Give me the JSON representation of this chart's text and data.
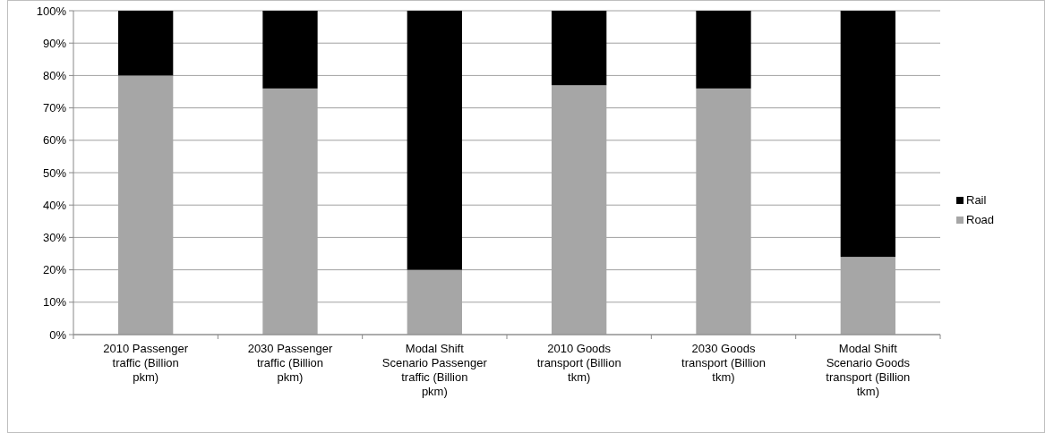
{
  "chart_data": {
    "type": "bar",
    "stacked": true,
    "categories": [
      "2010 Passenger traffic (Billion pkm)",
      "2030 Passenger traffic (Billion pkm)",
      "Modal Shift Scenario Passenger traffic (Billion pkm)",
      "2010 Goods transport (Billion tkm)",
      "2030 Goods transport (Billion tkm)",
      "Modal Shift Scenario Goods transport (Billion tkm)"
    ],
    "series": [
      {
        "name": "Road",
        "color": "#a6a6a6",
        "values": [
          80,
          76,
          20,
          77,
          76,
          24
        ]
      },
      {
        "name": "Rail",
        "color": "#000000",
        "values": [
          20,
          24,
          80,
          23,
          24,
          76
        ]
      }
    ],
    "ylim": [
      0,
      100
    ],
    "yticks": [
      {
        "value": 0,
        "label": "0%"
      },
      {
        "value": 10,
        "label": "10%"
      },
      {
        "value": 20,
        "label": "20%"
      },
      {
        "value": 30,
        "label": "30%"
      },
      {
        "value": 40,
        "label": "40%"
      },
      {
        "value": 50,
        "label": "50%"
      },
      {
        "value": 60,
        "label": "60%"
      },
      {
        "value": 70,
        "label": "70%"
      },
      {
        "value": 80,
        "label": "80%"
      },
      {
        "value": 90,
        "label": "90%"
      },
      {
        "value": 100,
        "label": "100%"
      }
    ],
    "grid": "y",
    "legend": "right"
  }
}
